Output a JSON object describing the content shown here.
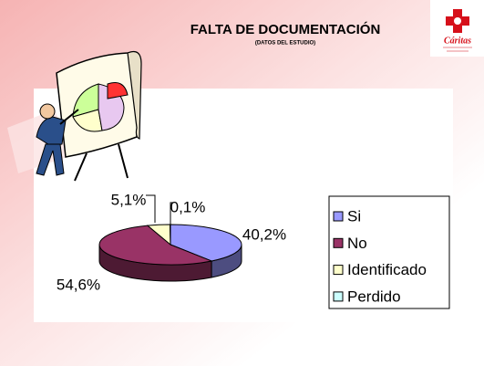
{
  "chart_data": {
    "type": "pie3d",
    "title": "FALTA DE DOCUMENTACIÓN",
    "subtitle": "(DATOS DEL ESTUDIO)",
    "categories": [
      "Si",
      "No",
      "Identificado",
      "Perdido"
    ],
    "values": [
      40.2,
      54.6,
      5.1,
      0.1
    ],
    "value_labels": [
      "40,2%",
      "54,6%",
      "5,1%",
      "0,1%"
    ],
    "colors": [
      "#9999ff",
      "#993366",
      "#ffffcc",
      "#ccffff"
    ],
    "legend": "right"
  },
  "logo": {
    "name": "Cáritas"
  }
}
